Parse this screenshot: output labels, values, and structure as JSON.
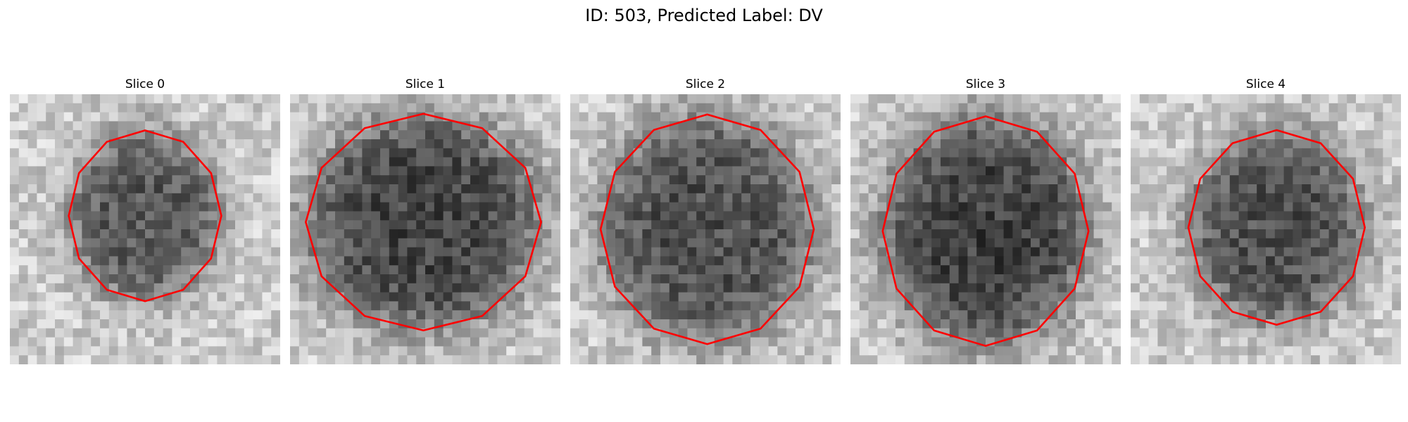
{
  "title": "ID: 503, Predicted Label: DV",
  "contour_color": "#ff0000",
  "slices": [
    {
      "label": "Slice 0"
    },
    {
      "label": "Slice 1"
    },
    {
      "label": "Slice 2"
    },
    {
      "label": "Slice 3"
    },
    {
      "label": "Slice 4"
    }
  ]
}
